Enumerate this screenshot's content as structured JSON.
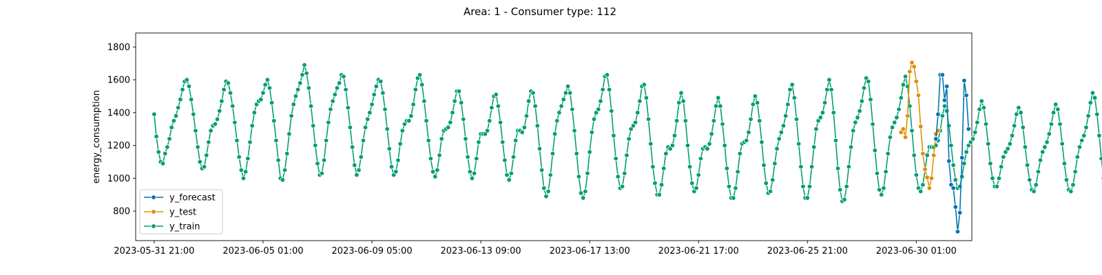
{
  "chart_data": {
    "type": "line",
    "title": "Area: 1 - Consumer type: 112",
    "xlabel": "",
    "ylabel": "energy_consumption",
    "x_type": "datetime",
    "x_step_hours": 2,
    "xlim": [
      "2023-05-31 04:00",
      "2023-07-02 04:00"
    ],
    "ylim": [
      620,
      1885
    ],
    "xticks": [
      "2023-05-31 21:00",
      "2023-06-05 01:00",
      "2023-06-09 05:00",
      "2023-06-13 09:00",
      "2023-06-17 13:00",
      "2023-06-21 17:00",
      "2023-06-25 21:00",
      "2023-06-30 01:00"
    ],
    "yticks": [
      800,
      1000,
      1200,
      1400,
      1600,
      1800
    ],
    "grid": false,
    "legend_position": "lower-left",
    "series": [
      {
        "name": "y_forecast",
        "color": "#0173b2",
        "start": "2023-06-30 19:00",
        "values": [
          1240,
          1390,
          1630,
          1630,
          1475,
          1560,
          1105,
          960,
          940,
          825,
          675,
          790,
          1125,
          1595,
          1505,
          1300
        ]
      },
      {
        "name": "y_test",
        "color": "#de8f05",
        "start": "2023-06-29 11:00",
        "values": [
          1280,
          1300,
          1250,
          1380,
          1650,
          1705,
          1680,
          1590,
          1505,
          1315,
          1150,
          1055,
          1005,
          940,
          1000,
          1140,
          1270,
          1290
        ]
      },
      {
        "name": "y_train",
        "color": "#029e73",
        "start": "2023-05-31 21:00",
        "values": [
          1390,
          1255,
          1160,
          1100,
          1090,
          1150,
          1190,
          1240,
          1310,
          1350,
          1380,
          1430,
          1480,
          1540,
          1590,
          1600,
          1560,
          1480,
          1390,
          1290,
          1190,
          1100,
          1060,
          1070,
          1140,
          1220,
          1290,
          1320,
          1330,
          1360,
          1410,
          1470,
          1540,
          1590,
          1580,
          1520,
          1440,
          1340,
          1230,
          1130,
          1050,
          1000,
          1040,
          1120,
          1220,
          1320,
          1400,
          1450,
          1470,
          1480,
          1520,
          1570,
          1600,
          1550,
          1460,
          1350,
          1230,
          1110,
          1000,
          990,
          1050,
          1150,
          1270,
          1380,
          1450,
          1500,
          1540,
          1580,
          1630,
          1690,
          1640,
          1550,
          1440,
          1320,
          1200,
          1090,
          1020,
          1030,
          1110,
          1230,
          1340,
          1420,
          1470,
          1510,
          1550,
          1580,
          1630,
          1620,
          1540,
          1430,
          1310,
          1190,
          1080,
          1020,
          1050,
          1130,
          1230,
          1310,
          1360,
          1400,
          1450,
          1510,
          1560,
          1600,
          1590,
          1520,
          1420,
          1300,
          1180,
          1070,
          1020,
          1040,
          1110,
          1210,
          1290,
          1330,
          1350,
          1350,
          1380,
          1450,
          1540,
          1610,
          1630,
          1570,
          1470,
          1350,
          1230,
          1120,
          1040,
          1010,
          1050,
          1140,
          1240,
          1290,
          1300,
          1310,
          1340,
          1400,
          1470,
          1530,
          1530,
          1460,
          1360,
          1240,
          1130,
          1040,
          1000,
          1030,
          1120,
          1220,
          1270,
          1270,
          1270,
          1290,
          1350,
          1430,
          1500,
          1510,
          1440,
          1340,
          1220,
          1110,
          1020,
          990,
          1030,
          1130,
          1230,
          1290,
          1290,
          1280,
          1310,
          1380,
          1470,
          1530,
          1520,
          1440,
          1320,
          1180,
          1050,
          940,
          890,
          920,
          1020,
          1150,
          1270,
          1350,
          1400,
          1440,
          1480,
          1520,
          1560,
          1520,
          1420,
          1290,
          1150,
          1010,
          910,
          880,
          920,
          1030,
          1160,
          1280,
          1360,
          1400,
          1420,
          1470,
          1540,
          1620,
          1630,
          1540,
          1410,
          1260,
          1120,
          1010,
          940,
          950,
          1030,
          1140,
          1240,
          1300,
          1320,
          1340,
          1400,
          1470,
          1560,
          1570,
          1490,
          1360,
          1210,
          1070,
          970,
          900,
          900,
          960,
          1060,
          1150,
          1190,
          1180,
          1200,
          1260,
          1350,
          1460,
          1520,
          1470,
          1350,
          1200,
          1070,
          970,
          920,
          940,
          1020,
          1120,
          1180,
          1190,
          1180,
          1210,
          1270,
          1350,
          1440,
          1490,
          1440,
          1330,
          1200,
          1060,
          950,
          880,
          880,
          940,
          1040,
          1150,
          1210,
          1220,
          1230,
          1280,
          1360,
          1450,
          1500,
          1460,
          1350,
          1220,
          1080,
          970,
          910,
          920,
          990,
          1090,
          1180,
          1240,
          1280,
          1320,
          1380,
          1450,
          1540,
          1570,
          1490,
          1360,
          1210,
          1070,
          950,
          880,
          880,
          950,
          1070,
          1190,
          1300,
          1350,
          1370,
          1400,
          1460,
          1540,
          1600,
          1540,
          1400,
          1230,
          1060,
          930,
          860,
          870,
          950,
          1070,
          1190,
          1290,
          1340,
          1370,
          1410,
          1470,
          1550,
          1610,
          1590,
          1480,
          1330,
          1170,
          1030,
          930,
          900,
          940,
          1040,
          1150,
          1250,
          1310,
          1340,
          1370,
          1420,
          1490,
          1570,
          1620,
          1560,
          1440,
          1290,
          1140,
          1020,
          940,
          920,
          960,
          1050,
          1140,
          1190,
          1190,
          1190,
          1200,
          1230,
          1290,
          1380,
          1440,
          1410,
          1320,
          1200,
          1080,
          990,
          940,
          950,
          1010,
          1090,
          1160,
          1200,
          1220,
          1240,
          1280,
          1340,
          1420,
          1470,
          1430,
          1330,
          1210,
          1090,
          1000,
          950,
          950,
          1000,
          1070,
          1130,
          1160,
          1180,
          1210,
          1260,
          1320,
          1390,
          1430,
          1400,
          1310,
          1190,
          1080,
          990,
          930,
          920,
          960,
          1040,
          1110,
          1160,
          1190,
          1220,
          1270,
          1330,
          1400,
          1450,
          1420,
          1330,
          1210,
          1090,
          990,
          930,
          920,
          960,
          1040,
          1130,
          1190,
          1230,
          1260,
          1310,
          1380,
          1460,
          1520,
          1490,
          1390,
          1260,
          1120,
          1000,
          910,
          870,
          880,
          950,
          1050,
          1150,
          1210,
          1250,
          1290,
          1350,
          1430,
          1520,
          1570,
          1530,
          1430,
          1290,
          1150,
          1030,
          960,
          940,
          990,
          1080,
          1180,
          1250,
          1290,
          1330,
          1380,
          1450,
          1530,
          1620,
          1650,
          1600,
          1480,
          1340,
          1190,
          1060,
          970,
          940,
          980,
          1070,
          1180,
          1260,
          1310,
          1350,
          1410,
          1490,
          1580,
          1670,
          1690,
          1600,
          1450,
          1280,
          1120,
          1000,
          950,
          970,
          1050,
          1160,
          1260,
          1320,
          1350,
          1380,
          1430,
          1510,
          1600,
          1640,
          1570,
          1430,
          1270,
          1110,
          990,
          930,
          940,
          1020,
          1130,
          1220,
          1260,
          1260,
          1260,
          1270,
          1300,
          1360,
          1430,
          1460,
          1410,
          1290,
          1150,
          1020,
          930,
          900,
          940,
          1030,
          1130,
          1210,
          1250,
          1260,
          1270
        ]
      }
    ]
  },
  "legend": {
    "items": [
      {
        "label": "y_forecast",
        "color": "#0173b2"
      },
      {
        "label": "y_test",
        "color": "#de8f05"
      },
      {
        "label": "y_train",
        "color": "#029e73"
      }
    ]
  }
}
